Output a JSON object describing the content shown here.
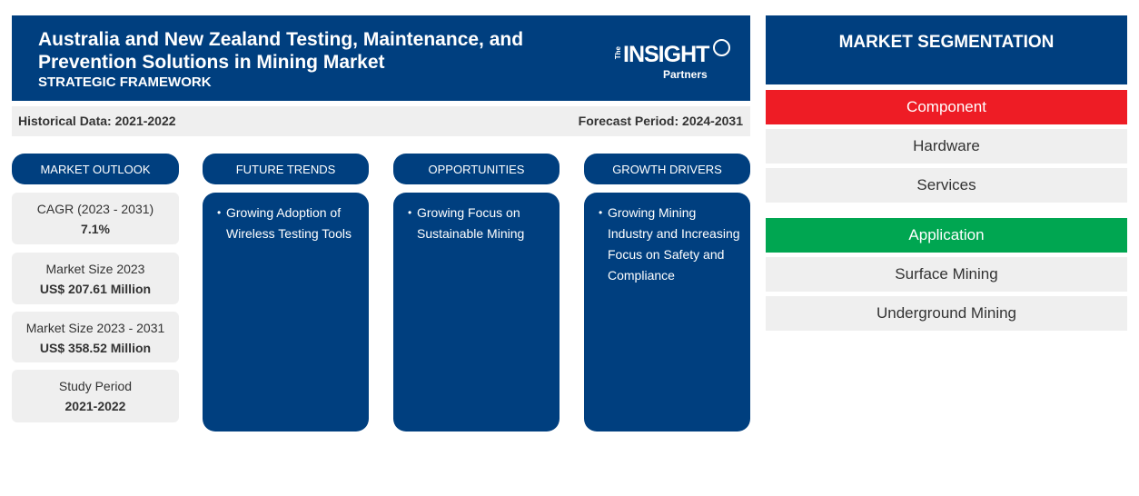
{
  "header": {
    "title": "Australia and New Zealand Testing, Maintenance, and Prevention Solutions in Mining Market",
    "subtitle": "STRATEGIC FRAMEWORK",
    "logo": {
      "the": "The",
      "insight": "INSIGHT",
      "partners": "Partners"
    }
  },
  "period": {
    "historical": "Historical Data: 2021-2022",
    "forecast": "Forecast Period: 2024-2031"
  },
  "outlook": {
    "heading": "MARKET OUTLOOK",
    "stats": [
      {
        "label": "CAGR (2023 - 2031)",
        "value": "7.1%"
      },
      {
        "label": "Market Size 2023",
        "value": "US$ 207.61 Million"
      },
      {
        "label": "Market Size 2023 - 2031",
        "value": "US$ 358.52 Million"
      },
      {
        "label": "Study Period",
        "value": "2021-2022"
      }
    ]
  },
  "columns": [
    {
      "heading": "FUTURE TRENDS",
      "item": "Growing Adoption of Wireless Testing Tools"
    },
    {
      "heading": "OPPORTUNITIES",
      "item": "Growing Focus on Sustainable Mining"
    },
    {
      "heading": "GROWTH DRIVERS",
      "item": "Growing Mining Industry and Increasing Focus on Safety and Compliance"
    }
  ],
  "segmentation": {
    "heading": "MARKET SEGMENTATION",
    "categories": [
      {
        "name": "Component",
        "color": "#ee1c25",
        "items": [
          "Hardware",
          "Services"
        ]
      },
      {
        "name": "Application",
        "color": "#00a651",
        "items": [
          "Surface Mining",
          "Underground Mining"
        ]
      }
    ]
  }
}
